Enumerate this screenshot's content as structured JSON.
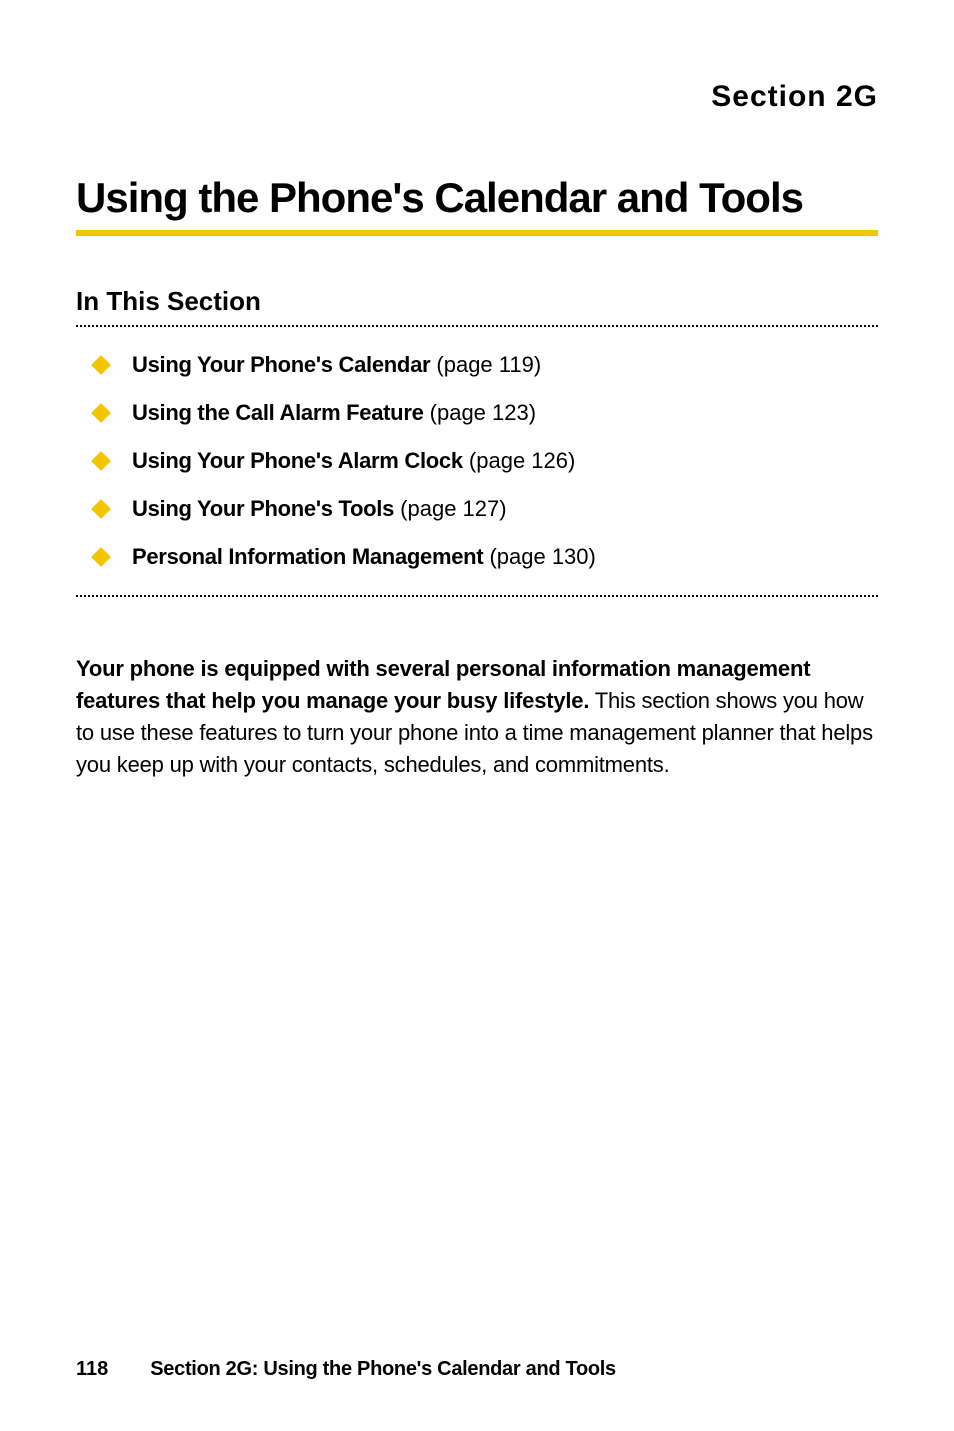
{
  "header": {
    "section_label": "Section 2G"
  },
  "title": "Using the Phone's Calendar and Tools",
  "underline_color": "#f3c400",
  "subheading": "In This Section",
  "bullet_color": "#f3c400",
  "toc": [
    {
      "label": "Using Your Phone's Calendar",
      "page": " (page 119)"
    },
    {
      "label": "Using the Call Alarm Feature",
      "page": " (page 123)"
    },
    {
      "label": "Using Your Phone's Alarm Clock",
      "page": " (page 126)"
    },
    {
      "label": "Using Your Phone's Tools",
      "page": " (page 127)"
    },
    {
      "label": "Personal Information Management",
      "page": " (page 130)"
    }
  ],
  "body": {
    "lead": "Your phone is equipped with several personal information management features that help you manage your busy lifestyle.",
    "rest": " This section shows you how to use these features to turn your phone into a time management planner that helps you keep up with your contacts, schedules, and commitments."
  },
  "footer": {
    "page_number": "118",
    "text": "Section 2G: Using the Phone's Calendar and Tools"
  },
  "colors": {
    "text": "#000000",
    "background": "#ffffff",
    "dotted": "#000000"
  },
  "typography": {
    "section_label_fontsize": 30,
    "title_fontsize": 42,
    "subheading_fontsize": 26,
    "toc_fontsize": 22,
    "body_fontsize": 22,
    "footer_fontsize": 20
  }
}
